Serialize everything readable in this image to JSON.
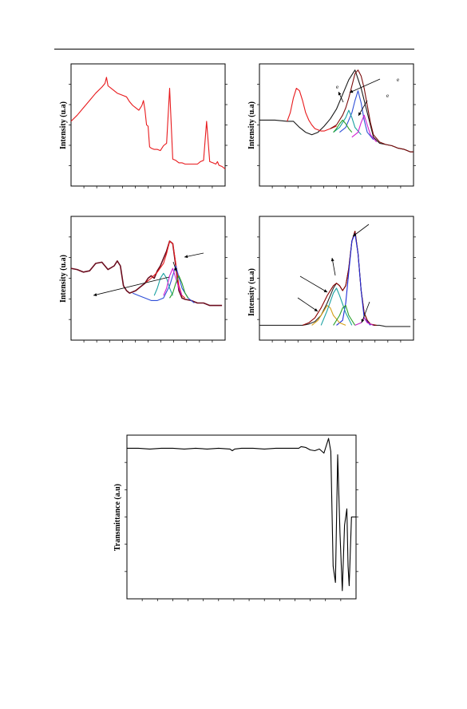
{
  "page": {
    "header_rule": true
  },
  "chart_data": [
    {
      "id": "panel-a",
      "type": "line",
      "ylabel": "Intensity (u.a)",
      "xlabel": "",
      "x_range": [
        0,
        100
      ],
      "y_range": [
        0,
        100
      ],
      "grid": false,
      "series": [
        {
          "color": "#e8191c",
          "x": [
            0,
            4,
            8,
            12,
            16,
            20,
            22,
            23,
            24,
            26,
            30,
            34,
            36,
            38,
            40,
            42,
            44,
            45,
            46,
            47,
            48,
            49,
            50,
            51,
            52,
            54,
            56,
            58,
            60,
            62,
            64,
            66,
            68,
            70,
            72,
            74,
            75,
            76,
            77,
            78,
            80,
            82,
            84,
            86,
            88,
            90,
            92,
            94,
            95,
            96,
            98,
            100
          ],
          "y": [
            53,
            58,
            64,
            70,
            76,
            81,
            84,
            89,
            82,
            80,
            76,
            74,
            73,
            69,
            66,
            64,
            62,
            64,
            66,
            70,
            62,
            50,
            49,
            32,
            31,
            30,
            30,
            29,
            33,
            35,
            80,
            22,
            21,
            19,
            19,
            18,
            18,
            18,
            18,
            18,
            18,
            18,
            20,
            21,
            53,
            20,
            19,
            18,
            20,
            17,
            16,
            14
          ]
        }
      ]
    },
    {
      "id": "panel-b",
      "type": "line",
      "ylabel": "Intensity (u.a)",
      "xlabel": "",
      "x_range": [
        0,
        100
      ],
      "y_range": [
        0,
        100
      ],
      "grid": false,
      "annotations": [
        "e",
        "e",
        "e"
      ],
      "series": [
        {
          "color": "#1a1a1a",
          "x": [
            0,
            10,
            18,
            22,
            26,
            30,
            34,
            38,
            42,
            46,
            50,
            54,
            58,
            62,
            66,
            70,
            74,
            78,
            82,
            86,
            90,
            94,
            98,
            100
          ],
          "y": [
            54,
            54,
            53,
            53,
            48,
            44,
            42,
            44,
            49,
            55,
            63,
            75,
            87,
            95,
            80,
            60,
            40,
            35,
            34,
            33,
            31,
            30,
            28,
            28
          ]
        },
        {
          "color": "#e8191c",
          "x": [
            18,
            20,
            22,
            24,
            26,
            28,
            30,
            32,
            34,
            36,
            38,
            40,
            42,
            44,
            46,
            48,
            50
          ],
          "y": [
            53,
            60,
            72,
            80,
            78,
            70,
            60,
            54,
            50,
            47,
            46,
            45,
            45,
            46,
            47,
            48,
            49
          ]
        },
        {
          "color": "#7b0c0c",
          "x": [
            46,
            50,
            54,
            56,
            58,
            60,
            62,
            64,
            66,
            68,
            70,
            72,
            74,
            78,
            82,
            86,
            90,
            94,
            98,
            100
          ],
          "y": [
            47,
            50,
            58,
            64,
            72,
            82,
            92,
            95,
            90,
            80,
            66,
            52,
            42,
            36,
            34,
            33,
            31,
            30,
            28,
            28
          ]
        },
        {
          "color": "#2f4fd8",
          "x": [
            52,
            56,
            60,
            62,
            64,
            66,
            68,
            70,
            74
          ],
          "y": [
            44,
            48,
            60,
            70,
            78,
            68,
            54,
            44,
            38
          ]
        },
        {
          "color": "#1aa1a1",
          "x": [
            48,
            52,
            56,
            58,
            60,
            62,
            66
          ],
          "y": [
            44,
            48,
            56,
            62,
            56,
            48,
            42
          ]
        },
        {
          "color": "#d11fd1",
          "x": [
            60,
            64,
            66,
            68,
            70,
            72,
            76
          ],
          "y": [
            40,
            44,
            52,
            58,
            50,
            42,
            36
          ]
        },
        {
          "color": "#2aa02a",
          "x": [
            48,
            50,
            52,
            54,
            56,
            58,
            60
          ],
          "y": [
            44,
            47,
            51,
            54,
            51,
            47,
            44
          ]
        }
      ]
    },
    {
      "id": "panel-c",
      "type": "line",
      "ylabel": "Intensity (u.a)",
      "xlabel": "",
      "x_range": [
        0,
        100
      ],
      "y_range": [
        0,
        100
      ],
      "grid": false,
      "series": [
        {
          "color": "#6b0c1e",
          "x": [
            0,
            4,
            8,
            12,
            16,
            20,
            24,
            28,
            30,
            32,
            34,
            36,
            38,
            40,
            42,
            44,
            46,
            48,
            50,
            52,
            54,
            56,
            58,
            60,
            62,
            64,
            66,
            68,
            70,
            72,
            74,
            78,
            82,
            86,
            90,
            94,
            98
          ],
          "y": [
            58,
            57,
            55,
            56,
            62,
            63,
            57,
            60,
            64,
            60,
            44,
            40,
            38,
            39,
            40,
            42,
            44,
            46,
            50,
            52,
            50,
            56,
            60,
            66,
            72,
            80,
            78,
            60,
            40,
            34,
            33,
            32,
            30,
            30,
            28,
            28,
            28
          ]
        },
        {
          "color": "#e8191c",
          "x": [
            48,
            52,
            56,
            60,
            62,
            64,
            66,
            68,
            70,
            72,
            74
          ],
          "y": [
            46,
            50,
            55,
            62,
            70,
            80,
            78,
            62,
            44,
            36,
            34
          ]
        },
        {
          "color": "#2f4fd8",
          "x": [
            40,
            44,
            48,
            52,
            56,
            60,
            64,
            68,
            72,
            76,
            80
          ],
          "y": [
            38,
            36,
            34,
            32,
            32,
            34,
            44,
            60,
            42,
            34,
            30
          ]
        },
        {
          "color": "#1aa1a1",
          "x": [
            54,
            56,
            58,
            60,
            62,
            64,
            66
          ],
          "y": [
            36,
            42,
            50,
            54,
            50,
            42,
            36
          ]
        },
        {
          "color": "#d11fd1",
          "x": [
            60,
            62,
            64,
            66,
            68,
            70,
            72
          ],
          "y": [
            36,
            42,
            52,
            58,
            50,
            42,
            36
          ]
        },
        {
          "color": "#2aa02a",
          "x": [
            64,
            66,
            68,
            70,
            72,
            74,
            76
          ],
          "y": [
            34,
            38,
            46,
            52,
            46,
            38,
            34
          ]
        }
      ]
    },
    {
      "id": "panel-d",
      "type": "line",
      "ylabel": "Intensity (u.a)",
      "xlabel": "",
      "x_range": [
        0,
        100
      ],
      "y_range": [
        0,
        100
      ],
      "grid": false,
      "series": [
        {
          "color": "#2a2a2a",
          "x": [
            0,
            8,
            16,
            24,
            28,
            32,
            36,
            40,
            44,
            48,
            50,
            52,
            54,
            56,
            58,
            60,
            62,
            64,
            66,
            68,
            70,
            72,
            74,
            76,
            78,
            82,
            86,
            90,
            94,
            98
          ],
          "y": [
            12,
            12,
            12,
            12,
            12,
            13,
            15,
            20,
            30,
            42,
            46,
            44,
            40,
            44,
            58,
            80,
            88,
            70,
            40,
            22,
            16,
            13,
            12,
            12,
            12,
            11,
            11,
            11,
            11,
            11
          ]
        },
        {
          "color": "#8b0000",
          "x": [
            28,
            32,
            36,
            40,
            44,
            48,
            50,
            52,
            54,
            56,
            58,
            60,
            62,
            64,
            66,
            68,
            70,
            72,
            76
          ],
          "y": [
            12,
            14,
            18,
            26,
            36,
            44,
            46,
            44,
            40,
            44,
            58,
            80,
            88,
            70,
            40,
            22,
            16,
            13,
            12
          ]
        },
        {
          "color": "#1f2bd8",
          "x": [
            50,
            54,
            56,
            58,
            60,
            62,
            64,
            66,
            68,
            72
          ],
          "y": [
            12,
            16,
            30,
            55,
            80,
            86,
            70,
            40,
            18,
            12
          ]
        },
        {
          "color": "#d4a017",
          "x": [
            34,
            38,
            42,
            44,
            46,
            48,
            52,
            56
          ],
          "y": [
            12,
            16,
            24,
            28,
            26,
            20,
            14,
            12
          ]
        },
        {
          "color": "#1aa1a1",
          "x": [
            40,
            44,
            48,
            50,
            52,
            56,
            60
          ],
          "y": [
            12,
            24,
            38,
            42,
            36,
            22,
            12
          ]
        },
        {
          "color": "#2aa02a",
          "x": [
            48,
            52,
            54,
            56,
            58,
            62
          ],
          "y": [
            12,
            20,
            26,
            28,
            20,
            12
          ]
        },
        {
          "color": "#c21fc2",
          "x": [
            62,
            66,
            68,
            70,
            74
          ],
          "y": [
            12,
            14,
            18,
            14,
            12
          ]
        }
      ]
    },
    {
      "id": "panel-e",
      "type": "line",
      "ylabel": "Transmittance (a.u)",
      "xlabel": "",
      "x_range": [
        0,
        100
      ],
      "y_range": [
        0,
        100
      ],
      "grid": false,
      "series": [
        {
          "color": "#000000",
          "x": [
            0,
            5,
            10,
            15,
            20,
            25,
            30,
            35,
            40,
            45,
            46,
            47,
            50,
            55,
            60,
            65,
            70,
            75,
            76,
            78,
            80,
            82,
            84,
            86,
            88,
            89,
            90,
            91,
            92,
            93,
            94,
            95,
            96,
            96.5,
            97,
            98,
            99,
            100
          ],
          "y": [
            92,
            92,
            91.5,
            92,
            92,
            91.5,
            92,
            91.5,
            92,
            91.5,
            90.5,
            91.5,
            92,
            92,
            91.5,
            92,
            92,
            92,
            93,
            92.5,
            91,
            90.5,
            91.5,
            89,
            98,
            90,
            20,
            10,
            88,
            40,
            5,
            45,
            55,
            20,
            8,
            50,
            50,
            50
          ]
        }
      ]
    }
  ]
}
